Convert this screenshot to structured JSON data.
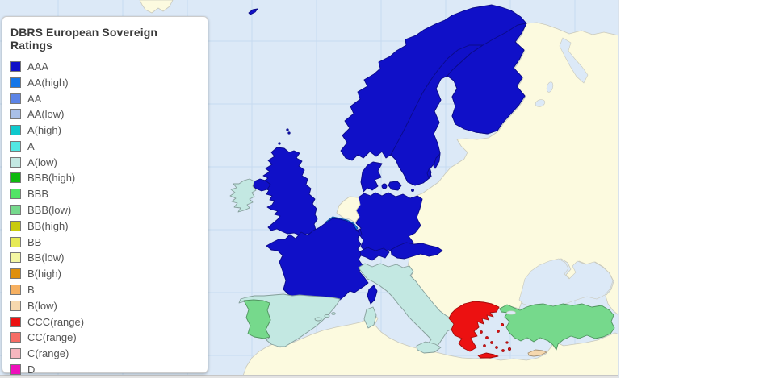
{
  "legend": {
    "title": "DBRS European Sovereign Ratings",
    "items": [
      {
        "label": "AAA",
        "color": "#1010C8"
      },
      {
        "label": "AA(high)",
        "color": "#1476E8"
      },
      {
        "label": "AA",
        "color": "#5C84E6"
      },
      {
        "label": "AA(low)",
        "color": "#A9C0E8"
      },
      {
        "label": "A(high)",
        "color": "#0FC9CD"
      },
      {
        "label": "A",
        "color": "#52E8E3"
      },
      {
        "label": "A(low)",
        "color": "#C3E8E2"
      },
      {
        "label": "BBB(high)",
        "color": "#0EB90E"
      },
      {
        "label": "BBB",
        "color": "#52E566"
      },
      {
        "label": "BBB(low)",
        "color": "#76D98C"
      },
      {
        "label": "BB(high)",
        "color": "#C9CB0E"
      },
      {
        "label": "BB",
        "color": "#E6EA55"
      },
      {
        "label": "BB(low)",
        "color": "#F4F7A3"
      },
      {
        "label": "B(high)",
        "color": "#DE8F0C"
      },
      {
        "label": "B",
        "color": "#F6B061"
      },
      {
        "label": "B(low)",
        "color": "#F6D8AE"
      },
      {
        "label": "CCC(range)",
        "color": "#EC1111"
      },
      {
        "label": "CC(range)",
        "color": "#F66D66"
      },
      {
        "label": "C(range)",
        "color": "#F6B6BE"
      },
      {
        "label": "D",
        "color": "#EE0FBB"
      }
    ]
  },
  "map": {
    "sea_color": "#DCE9F7",
    "grid_color": "#C6DBF0",
    "no_data_color": "#FCFADF",
    "no_data_border": "#C9C9BC",
    "countries": [
      {
        "name": "Norway",
        "rating": "AAA"
      },
      {
        "name": "Sweden",
        "rating": "AAA"
      },
      {
        "name": "Finland",
        "rating": "AAA"
      },
      {
        "name": "Denmark",
        "rating": "AAA"
      },
      {
        "name": "United Kingdom",
        "rating": "AAA"
      },
      {
        "name": "Germany",
        "rating": "AAA"
      },
      {
        "name": "France",
        "rating": "AAA"
      },
      {
        "name": "Switzerland",
        "rating": "AAA"
      },
      {
        "name": "Austria",
        "rating": "AAA"
      },
      {
        "name": "Luxembourg",
        "rating": "AAA"
      },
      {
        "name": "Belgium",
        "rating": "AA(high)"
      },
      {
        "name": "Ireland",
        "rating": "A(low)"
      },
      {
        "name": "Spain",
        "rating": "A(low)"
      },
      {
        "name": "Italy",
        "rating": "A(low)"
      },
      {
        "name": "Portugal",
        "rating": "BBB(low)"
      },
      {
        "name": "Turkey",
        "rating": "BBB(low)"
      },
      {
        "name": "Greece",
        "rating": "CCC(range)"
      },
      {
        "name": "Cyprus",
        "rating": "B(low)"
      },
      {
        "name": "Netherlands",
        "rating": null
      }
    ]
  }
}
